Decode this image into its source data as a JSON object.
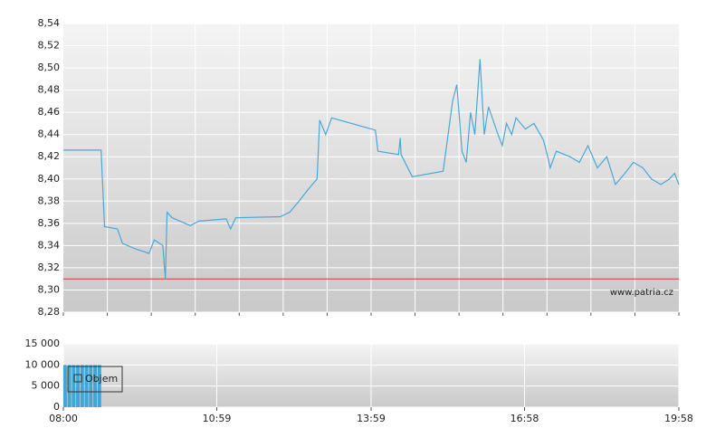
{
  "chart_data": [
    {
      "type": "line",
      "color": "#4aa8d6",
      "x": [
        "08:00",
        "08:44",
        "08:48",
        "09:03",
        "09:09",
        "09:24",
        "09:40",
        "09:46",
        "09:56",
        "09:59",
        "10:01",
        "10:07",
        "10:28",
        "10:38",
        "11:10",
        "11:15",
        "11:21",
        "12:13",
        "12:24",
        "12:35",
        "12:45",
        "12:56",
        "12:59",
        "13:06",
        "13:13",
        "14:04",
        "14:07",
        "14:31",
        "14:33",
        "14:34",
        "14:47",
        "15:23",
        "15:34",
        "15:39",
        "15:45",
        "15:50",
        "15:55",
        "16:00",
        "16:06",
        "16:11",
        "16:16",
        "16:27",
        "16:32",
        "16:37",
        "16:43",
        "16:48",
        "16:59",
        "17:09",
        "17:20",
        "17:25",
        "17:28",
        "17:35",
        "17:51",
        "18:02",
        "18:12",
        "18:23",
        "18:34",
        "18:44",
        "18:55",
        "19:05",
        "19:16",
        "19:26",
        "19:37",
        "19:47",
        "19:53",
        "19:58"
      ],
      "values": [
        8.426,
        8.426,
        8.357,
        8.355,
        8.342,
        8.337,
        8.333,
        8.345,
        8.34,
        8.31,
        8.37,
        8.365,
        8.358,
        8.362,
        8.364,
        8.355,
        8.365,
        8.366,
        8.37,
        8.38,
        8.39,
        8.4,
        8.453,
        8.44,
        8.455,
        8.444,
        8.425,
        8.422,
        8.437,
        8.422,
        8.402,
        8.407,
        8.47,
        8.485,
        8.425,
        8.415,
        8.46,
        8.44,
        8.508,
        8.44,
        8.465,
        8.44,
        8.43,
        8.45,
        8.44,
        8.455,
        8.445,
        8.45,
        8.435,
        8.42,
        8.41,
        8.425,
        8.42,
        8.415,
        8.43,
        8.41,
        8.42,
        8.395,
        8.405,
        8.415,
        8.41,
        8.4,
        8.395,
        8.4,
        8.405,
        8.395
      ],
      "xlim": [
        "08:00",
        "19:58"
      ],
      "ylim": [
        8.28,
        8.54
      ],
      "yticks": [
        {
          "value": 8.28,
          "label": "8,28"
        },
        {
          "value": 8.3,
          "label": "8,30"
        },
        {
          "value": 8.32,
          "label": "8,32"
        },
        {
          "value": 8.34,
          "label": "8,34"
        },
        {
          "value": 8.36,
          "label": "8,36"
        },
        {
          "value": 8.38,
          "label": "8,38"
        },
        {
          "value": 8.4,
          "label": "8,40"
        },
        {
          "value": 8.42,
          "label": "8,42"
        },
        {
          "value": 8.44,
          "label": "8,44"
        },
        {
          "value": 8.46,
          "label": "8,46"
        },
        {
          "value": 8.48,
          "label": "8,48"
        },
        {
          "value": 8.5,
          "label": "8,50"
        },
        {
          "value": 8.52,
          "label": "8,52"
        },
        {
          "value": 8.54,
          "label": "8,54"
        }
      ],
      "reference_line": 8.31,
      "reference_color": "#e03030",
      "annotation": "www.patria.cz",
      "grid": true
    },
    {
      "type": "bar",
      "series": [
        {
          "name": "Objem",
          "color": "#3fa7d8",
          "x": [
            "08:02",
            "08:07",
            "08:12",
            "08:17",
            "08:22",
            "08:27",
            "08:32",
            "08:37",
            "08:42"
          ],
          "values": [
            10000,
            10000,
            10000,
            10000,
            10000,
            10000,
            10000,
            10000,
            10000
          ]
        }
      ],
      "xlim": [
        "08:00",
        "19:58"
      ],
      "xticks": [
        "08:00",
        "10:59",
        "13:59",
        "16:58",
        "19:58"
      ],
      "ylim": [
        0,
        15000
      ],
      "yticks": [
        {
          "value": 0,
          "label": "0"
        },
        {
          "value": 5000,
          "label": "5 000"
        },
        {
          "value": 10000,
          "label": "10 000"
        },
        {
          "value": 15000,
          "label": "15 000"
        }
      ],
      "grid": true
    }
  ]
}
